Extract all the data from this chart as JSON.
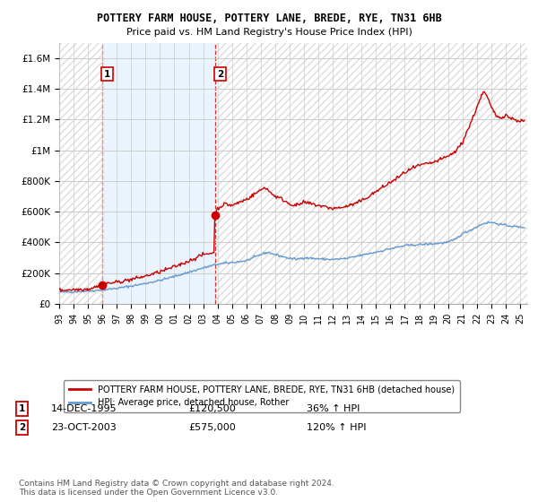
{
  "title": "POTTERY FARM HOUSE, POTTERY LANE, BREDE, RYE, TN31 6HB",
  "subtitle": "Price paid vs. HM Land Registry's House Price Index (HPI)",
  "xlim": [
    1993.0,
    2025.5
  ],
  "ylim": [
    0,
    1700000
  ],
  "yticks": [
    0,
    200000,
    400000,
    600000,
    800000,
    1000000,
    1200000,
    1400000,
    1600000
  ],
  "ytick_labels": [
    "£0",
    "£200K",
    "£400K",
    "£600K",
    "£800K",
    "£1M",
    "£1.2M",
    "£1.4M",
    "£1.6M"
  ],
  "xtick_years": [
    1993,
    1994,
    1995,
    1996,
    1997,
    1998,
    1999,
    2000,
    2001,
    2002,
    2003,
    2004,
    2005,
    2006,
    2007,
    2008,
    2009,
    2010,
    2011,
    2012,
    2013,
    2014,
    2015,
    2016,
    2017,
    2018,
    2019,
    2020,
    2021,
    2022,
    2023,
    2024,
    2025
  ],
  "red_line_color": "#cc0000",
  "blue_line_color": "#6699cc",
  "shade_color": "#ddeeff",
  "grid_color": "#cccccc",
  "hatch_color": "#dddddd",
  "background_color": "#ffffff",
  "legend_label_red": "POTTERY FARM HOUSE, POTTERY LANE, BREDE, RYE, TN31 6HB (detached house)",
  "legend_label_blue": "HPI: Average price, detached house, Rother",
  "point1_year": 1995.96,
  "point1_value": 120500,
  "point2_year": 2003.81,
  "point2_value": 575000,
  "point1_date": "14-DEC-1995",
  "point1_price": "£120,500",
  "point1_hpi": "36% ↑ HPI",
  "point2_date": "23-OCT-2003",
  "point2_price": "£575,000",
  "point2_hpi": "120% ↑ HPI",
  "footer": "Contains HM Land Registry data © Crown copyright and database right 2024.\nThis data is licensed under the Open Government Licence v3.0."
}
